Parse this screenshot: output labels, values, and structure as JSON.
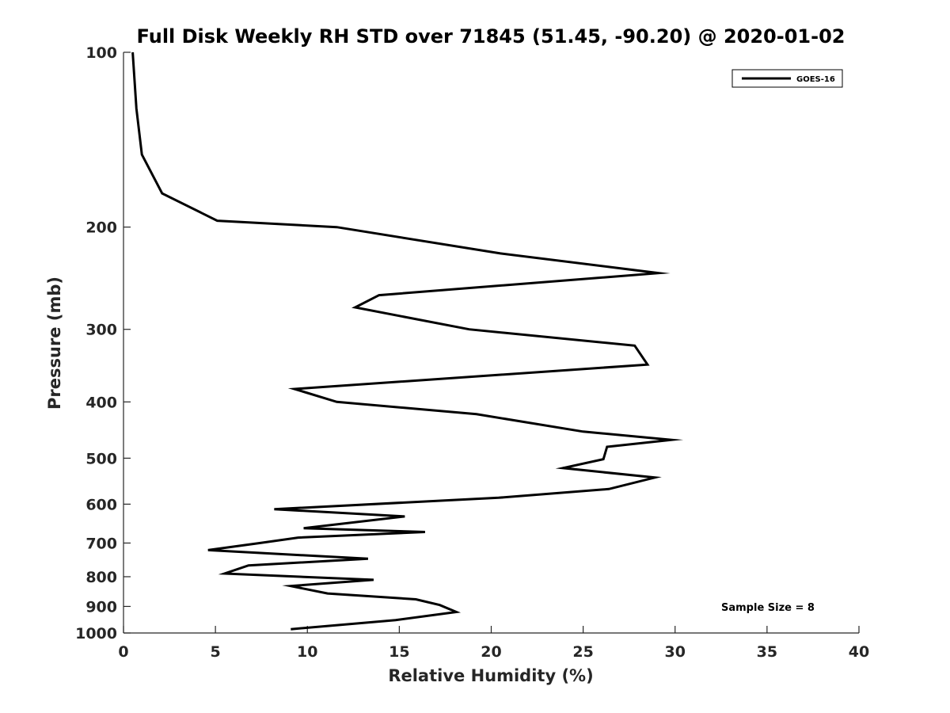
{
  "chart_data": {
    "type": "line",
    "title": "Full Disk Weekly RH STD over 71845 (51.45, -90.20) @ 2020-01-02",
    "xlabel": "Relative Humidity (%)",
    "ylabel": "Pressure (mb)",
    "xlim": [
      0,
      40
    ],
    "ylim": [
      1000,
      100
    ],
    "yscale": "log",
    "grid": false,
    "legend_position": "top-right",
    "xticks": [
      "0",
      "5",
      "10",
      "15",
      "20",
      "25",
      "30",
      "35",
      "40"
    ],
    "yticks": [
      "100",
      "200",
      "300",
      "400",
      "500",
      "600",
      "700",
      "800",
      "900",
      "1000"
    ],
    "annotation": "Sample Size = 8",
    "series": [
      {
        "name": "GOES-16",
        "color": "#000000",
        "points": [
          [
            0.5,
            100
          ],
          [
            0.7,
            125
          ],
          [
            1.0,
            150
          ],
          [
            2.1,
            175
          ],
          [
            5.1,
            195
          ],
          [
            11.6,
            200
          ],
          [
            20.5,
            222
          ],
          [
            29.1,
            240
          ],
          [
            13.9,
            262
          ],
          [
            12.6,
            275
          ],
          [
            18.8,
            300
          ],
          [
            27.8,
            320
          ],
          [
            28.5,
            345
          ],
          [
            9.3,
            380
          ],
          [
            11.6,
            400
          ],
          [
            19.2,
            420
          ],
          [
            25.0,
            450
          ],
          [
            29.8,
            465
          ],
          [
            26.3,
            478
          ],
          [
            26.1,
            502
          ],
          [
            23.9,
            520
          ],
          [
            28.9,
            540
          ],
          [
            26.4,
            565
          ],
          [
            20.4,
            585
          ],
          [
            8.2,
            612
          ],
          [
            15.3,
            630
          ],
          [
            9.8,
            660
          ],
          [
            16.4,
            670
          ],
          [
            9.5,
            685
          ],
          [
            7.4,
            700
          ],
          [
            4.6,
            720
          ],
          [
            13.3,
            745
          ],
          [
            6.8,
            765
          ],
          [
            5.5,
            790
          ],
          [
            13.6,
            810
          ],
          [
            9.1,
            830
          ],
          [
            11.1,
            855
          ],
          [
            15.9,
            875
          ],
          [
            17.2,
            895
          ],
          [
            18.1,
            920
          ],
          [
            14.8,
            950
          ],
          [
            9.1,
            985
          ]
        ]
      }
    ]
  }
}
